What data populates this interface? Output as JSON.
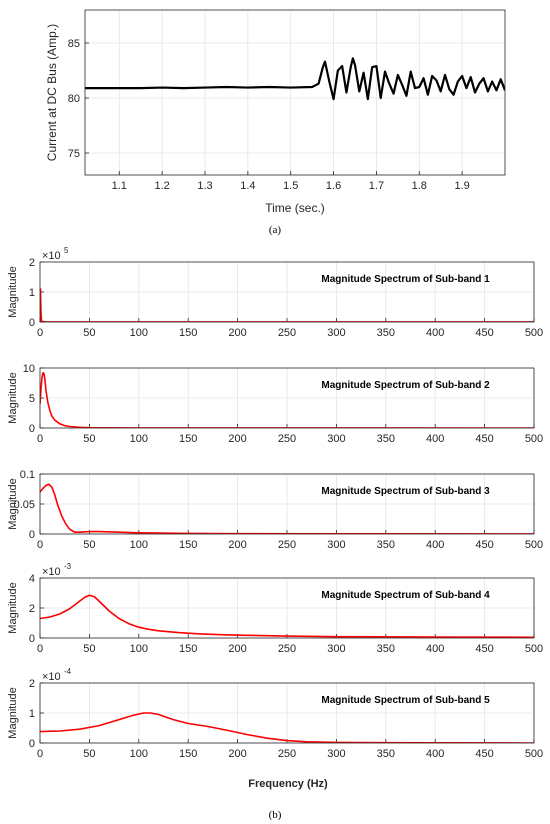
{
  "figure": {
    "caption_a": "(a)",
    "caption_b": "(b)",
    "spectrum_xlabel": "Frequency (Hz)"
  },
  "chart_data": [
    {
      "id": "a",
      "type": "line",
      "xlabel": "Time (sec.)",
      "ylabel": "Current at DC Bus (Amp.)",
      "xlim": [
        1.02,
        2.0
      ],
      "ylim": [
        73,
        88
      ],
      "xticks": [
        "1.1",
        "1.2",
        "1.3",
        "1.4",
        "1.5",
        "1.6",
        "1.7",
        "1.8",
        "1.9"
      ],
      "yticks": [
        "75",
        "80",
        "85"
      ],
      "grid": true,
      "series": [
        {
          "color": "#000000",
          "x": [
            1.02,
            1.05,
            1.1,
            1.15,
            1.2,
            1.25,
            1.3,
            1.35,
            1.4,
            1.45,
            1.5,
            1.55,
            1.565,
            1.575,
            1.58,
            1.59,
            1.6,
            1.61,
            1.62,
            1.63,
            1.64,
            1.645,
            1.65,
            1.66,
            1.67,
            1.68,
            1.69,
            1.7,
            1.71,
            1.72,
            1.73,
            1.74,
            1.75,
            1.76,
            1.77,
            1.78,
            1.79,
            1.8,
            1.81,
            1.82,
            1.83,
            1.84,
            1.85,
            1.86,
            1.87,
            1.88,
            1.89,
            1.9,
            1.91,
            1.92,
            1.93,
            1.94,
            1.95,
            1.96,
            1.97,
            1.98,
            1.99,
            2.0
          ],
          "y": [
            80.9,
            80.9,
            80.9,
            80.9,
            80.95,
            80.9,
            80.95,
            81.0,
            80.95,
            81.0,
            80.95,
            81.0,
            81.3,
            82.8,
            83.3,
            81.5,
            79.9,
            82.5,
            82.9,
            80.5,
            82.8,
            83.6,
            83.0,
            80.6,
            82.3,
            79.9,
            82.8,
            82.9,
            80.0,
            82.4,
            81.3,
            80.4,
            82.1,
            81.2,
            80.2,
            82.4,
            80.9,
            81.0,
            81.8,
            80.3,
            82.0,
            81.6,
            80.6,
            82.1,
            80.8,
            80.3,
            81.5,
            82.0,
            80.9,
            81.9,
            80.5,
            81.3,
            81.8,
            80.6,
            81.5,
            80.7,
            81.7,
            80.7
          ]
        }
      ]
    },
    {
      "id": "b1",
      "type": "line",
      "title": "Magnitude Spectrum of Sub-band 1",
      "ylabel": "Magnitude",
      "xlim": [
        0,
        500
      ],
      "ylim": [
        0,
        2
      ],
      "multiplier_base": "×10",
      "multiplier_exp": "5",
      "xticks": [
        "0",
        "50",
        "100",
        "150",
        "200",
        "250",
        "300",
        "350",
        "400",
        "450",
        "500"
      ],
      "yticks": [
        "0",
        "1",
        "2"
      ],
      "grid": true,
      "series": [
        {
          "color": "#ff0000",
          "x": [
            0,
            0.5,
            1,
            1.5,
            2,
            3,
            5,
            10,
            500
          ],
          "y": [
            0,
            1.1,
            0.3,
            0.06,
            0.02,
            0.01,
            0.005,
            0.002,
            0.001
          ]
        }
      ]
    },
    {
      "id": "b2",
      "type": "line",
      "title": "Magnitude Spectrum of Sub-band 2",
      "ylabel": "Magnitude",
      "xlim": [
        0,
        500
      ],
      "ylim": [
        0,
        10
      ],
      "xticks": [
        "0",
        "50",
        "100",
        "150",
        "200",
        "250",
        "300",
        "350",
        "400",
        "450",
        "500"
      ],
      "yticks": [
        "0",
        "5",
        "10"
      ],
      "grid": true,
      "series": [
        {
          "color": "#ff0000",
          "x": [
            0,
            1,
            2,
            3,
            4,
            5,
            6,
            8,
            10,
            12,
            15,
            20,
            25,
            30,
            40,
            50,
            70,
            100,
            500
          ],
          "y": [
            4.0,
            6.5,
            8.4,
            9.2,
            9.1,
            8.0,
            6.3,
            4.2,
            2.9,
            2.0,
            1.3,
            0.7,
            0.4,
            0.25,
            0.12,
            0.06,
            0.03,
            0.01,
            0.0
          ]
        }
      ]
    },
    {
      "id": "b3",
      "type": "line",
      "title": "Magnitude Spectrum of Sub-band 3",
      "ylabel": "Magnitude",
      "xlim": [
        0,
        500
      ],
      "ylim": [
        0,
        0.1
      ],
      "xticks": [
        "0",
        "50",
        "100",
        "150",
        "200",
        "250",
        "300",
        "350",
        "400",
        "450",
        "500"
      ],
      "yticks": [
        "0",
        "0.05",
        "0.1"
      ],
      "grid": true,
      "series": [
        {
          "color": "#ff0000",
          "x": [
            0,
            3,
            6,
            9,
            12,
            15,
            18,
            22,
            26,
            30,
            35,
            40,
            50,
            60,
            80,
            100,
            150,
            200,
            300,
            500
          ],
          "y": [
            0.07,
            0.076,
            0.081,
            0.083,
            0.078,
            0.065,
            0.048,
            0.03,
            0.017,
            0.008,
            0.003,
            0.003,
            0.004,
            0.004,
            0.003,
            0.002,
            0.001,
            0.0006,
            0.0003,
            0.0001
          ]
        }
      ]
    },
    {
      "id": "b4",
      "type": "line",
      "title": "Magnitude Spectrum of Sub-band 4",
      "ylabel": "Magnitude",
      "xlim": [
        0,
        500
      ],
      "ylim": [
        0,
        4
      ],
      "multiplier_base": "×10",
      "multiplier_exp": "-3",
      "xticks": [
        "0",
        "50",
        "100",
        "150",
        "200",
        "250",
        "300",
        "350",
        "400",
        "450",
        "500"
      ],
      "yticks": [
        "0",
        "2",
        "4"
      ],
      "grid": true,
      "series": [
        {
          "color": "#ff0000",
          "x": [
            0,
            10,
            20,
            30,
            40,
            45,
            50,
            55,
            60,
            70,
            80,
            90,
            100,
            110,
            120,
            140,
            160,
            180,
            200,
            250,
            300,
            400,
            500
          ],
          "y": [
            1.3,
            1.4,
            1.6,
            1.95,
            2.45,
            2.7,
            2.85,
            2.75,
            2.45,
            1.8,
            1.3,
            0.95,
            0.72,
            0.58,
            0.48,
            0.36,
            0.28,
            0.23,
            0.19,
            0.13,
            0.09,
            0.06,
            0.05
          ]
        }
      ]
    },
    {
      "id": "b5",
      "type": "line",
      "title": "Magnitude Spectrum of Sub-band 5",
      "ylabel": "Magnitude",
      "xlim": [
        0,
        500
      ],
      "ylim": [
        0,
        2
      ],
      "multiplier_base": "×10",
      "multiplier_exp": "-4",
      "xticks": [
        "0",
        "50",
        "100",
        "150",
        "200",
        "250",
        "300",
        "350",
        "400",
        "450",
        "500"
      ],
      "yticks": [
        "0",
        "1",
        "2"
      ],
      "grid": true,
      "series": [
        {
          "color": "#ff0000",
          "x": [
            0,
            20,
            40,
            60,
            80,
            95,
            105,
            112,
            120,
            135,
            150,
            170,
            190,
            210,
            230,
            250,
            270,
            300,
            350,
            400,
            500
          ],
          "y": [
            0.38,
            0.4,
            0.46,
            0.58,
            0.78,
            0.93,
            1.0,
            1.0,
            0.95,
            0.78,
            0.65,
            0.55,
            0.42,
            0.28,
            0.16,
            0.08,
            0.04,
            0.02,
            0.01,
            0.005,
            0.0
          ]
        }
      ]
    }
  ]
}
